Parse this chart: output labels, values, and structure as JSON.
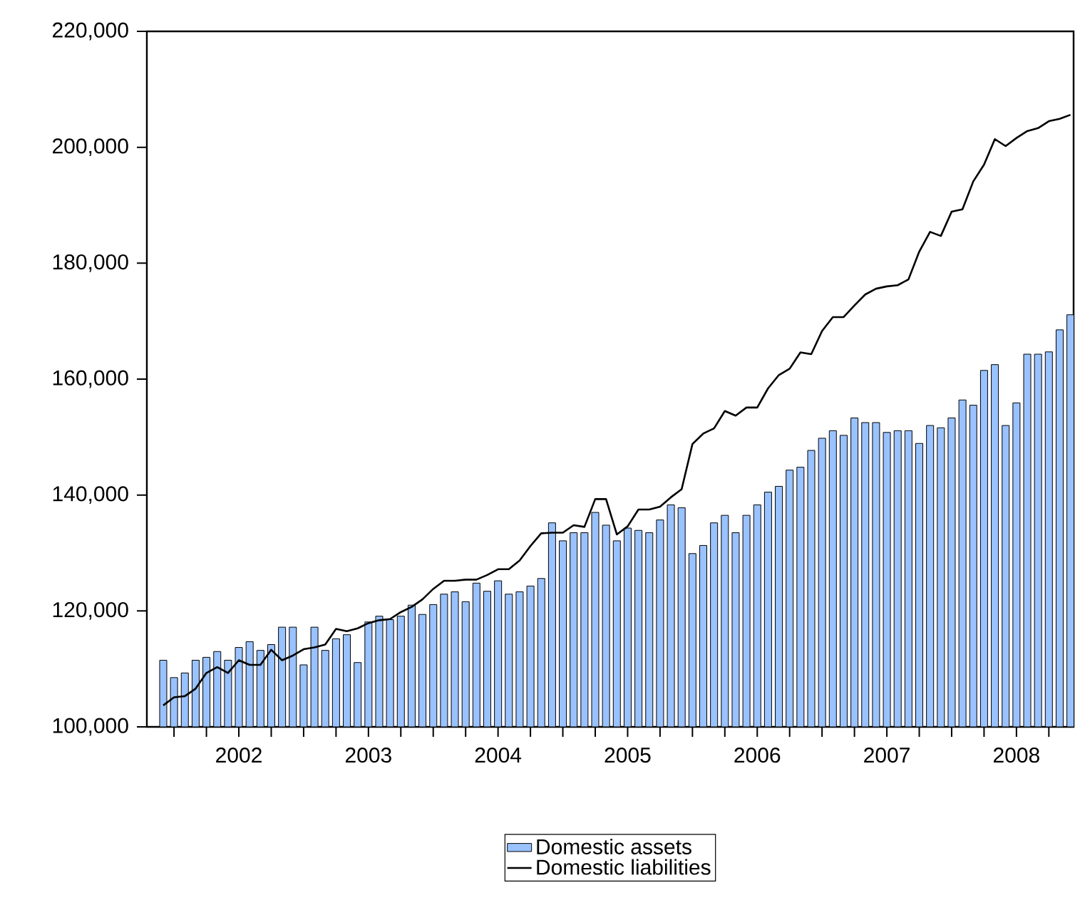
{
  "chart_data": {
    "type": "bar",
    "x": [
      "2001-12",
      "2002-01",
      "2002-02",
      "2002-03",
      "2002-04",
      "2002-05",
      "2002-06",
      "2002-07",
      "2002-08",
      "2002-09",
      "2002-10",
      "2002-11",
      "2002-12",
      "2003-01",
      "2003-02",
      "2003-03",
      "2003-04",
      "2003-05",
      "2003-06",
      "2003-07",
      "2003-08",
      "2003-09",
      "2003-10",
      "2003-11",
      "2003-12",
      "2004-01",
      "2004-02",
      "2004-03",
      "2004-04",
      "2004-05",
      "2004-06",
      "2004-07",
      "2004-08",
      "2004-09",
      "2004-10",
      "2004-11",
      "2004-12",
      "2005-01",
      "2005-02",
      "2005-03",
      "2005-04",
      "2005-05",
      "2005-06",
      "2005-07",
      "2005-08",
      "2005-09",
      "2005-10",
      "2005-11",
      "2005-12",
      "2006-01",
      "2006-02",
      "2006-03",
      "2006-04",
      "2006-05",
      "2006-06",
      "2006-07",
      "2006-08",
      "2006-09",
      "2006-10",
      "2006-11",
      "2006-12",
      "2007-01",
      "2007-02",
      "2007-03",
      "2007-04",
      "2007-05",
      "2007-06",
      "2007-07",
      "2007-08",
      "2007-09",
      "2007-10",
      "2007-11",
      "2007-12",
      "2008-01",
      "2008-02",
      "2008-03",
      "2008-04",
      "2008-05",
      "2008-06",
      "2008-07",
      "2008-08",
      "2008-09",
      "2008-10",
      "2008-11",
      "2008-12"
    ],
    "series": [
      {
        "name": "Domestic assets",
        "color": "#99c2ff",
        "values": [
          111500,
          108500,
          109300,
          111500,
          112000,
          113000,
          111500,
          113700,
          114700,
          113200,
          114200,
          117200,
          117200,
          110700,
          117200,
          113200,
          115200,
          115900,
          111100,
          118100,
          119100,
          118500,
          119100,
          121000,
          119400,
          121100,
          122900,
          123300,
          121600,
          124800,
          123400,
          125200,
          122900,
          123300,
          124300,
          125600,
          135200,
          132100,
          133500,
          133500,
          137000,
          134800,
          132100,
          134300,
          133900,
          133500,
          135700,
          138300,
          137800,
          129900,
          131300,
          135200,
          136500,
          133500,
          136500,
          138300,
          140500,
          141500,
          144300,
          144800,
          147700,
          149800,
          151100,
          150300,
          153300,
          152500,
          152500,
          150800,
          151100,
          151100,
          148900,
          152000,
          151600,
          153300,
          156400,
          155500,
          161500,
          162500,
          152000,
          155900,
          164300,
          164300,
          164700,
          168500,
          171100
        ]
      },
      {
        "name": "Domestic liabilities",
        "type": "line",
        "color": "#000000",
        "values": [
          103700,
          105100,
          105300,
          106600,
          109300,
          110300,
          109300,
          111500,
          110700,
          110700,
          113300,
          111500,
          112300,
          113400,
          113700,
          114200,
          116900,
          116500,
          117000,
          117900,
          118400,
          118600,
          119800,
          120700,
          122000,
          123800,
          125200,
          125200,
          125400,
          125400,
          126200,
          127200,
          127200,
          128700,
          131200,
          133400,
          133500,
          133500,
          134800,
          134500,
          139300,
          139300,
          133200,
          134600,
          137500,
          137500,
          138000,
          139600,
          141000,
          148800,
          150600,
          151500,
          154500,
          153700,
          155100,
          155100,
          158400,
          160700,
          161800,
          164600,
          164300,
          168300,
          170700,
          170700,
          172700,
          174600,
          175600,
          176000,
          176200,
          177200,
          182000,
          185400,
          184700,
          188900,
          189300,
          194100,
          197000,
          201400,
          200200,
          201600,
          202800,
          203300,
          204500,
          204900,
          205600
        ]
      }
    ],
    "xlim": [
      "2001-10-16",
      "2008-12-10"
    ],
    "xticks": [
      {
        "value": "2002-01",
        "label": null
      },
      {
        "value": "2002-04",
        "label": null
      },
      {
        "value": "2002-07",
        "label": "2002"
      },
      {
        "value": "2002-10",
        "label": null
      },
      {
        "value": "2003-01",
        "label": null
      },
      {
        "value": "2003-04",
        "label": null
      },
      {
        "value": "2003-07",
        "label": "2003"
      },
      {
        "value": "2003-10",
        "label": null
      },
      {
        "value": "2004-01",
        "label": null
      },
      {
        "value": "2004-04",
        "label": null
      },
      {
        "value": "2004-07",
        "label": "2004"
      },
      {
        "value": "2004-10",
        "label": null
      },
      {
        "value": "2005-01",
        "label": null
      },
      {
        "value": "2005-04",
        "label": null
      },
      {
        "value": "2005-07",
        "label": "2005"
      },
      {
        "value": "2005-10",
        "label": null
      },
      {
        "value": "2006-01",
        "label": null
      },
      {
        "value": "2006-04",
        "label": null
      },
      {
        "value": "2006-07",
        "label": "2006"
      },
      {
        "value": "2006-10",
        "label": null
      },
      {
        "value": "2007-01",
        "label": null
      },
      {
        "value": "2007-04",
        "label": null
      },
      {
        "value": "2007-07",
        "label": "2007"
      },
      {
        "value": "2007-10",
        "label": null
      },
      {
        "value": "2008-01",
        "label": null
      },
      {
        "value": "2008-04",
        "label": null
      },
      {
        "value": "2008-07",
        "label": "2008"
      },
      {
        "value": "2008-10",
        "label": null
      }
    ],
    "ylim": [
      100000,
      220000
    ],
    "yticks": [
      {
        "value": 100000,
        "label": "100,000"
      },
      {
        "value": 120000,
        "label": "120,000"
      },
      {
        "value": 140000,
        "label": "140,000"
      },
      {
        "value": 160000,
        "label": "160,000"
      },
      {
        "value": 180000,
        "label": "180,000"
      },
      {
        "value": 200000,
        "label": "200,000"
      },
      {
        "value": 220000,
        "label": "220,000"
      }
    ],
    "legend": "bottom"
  }
}
